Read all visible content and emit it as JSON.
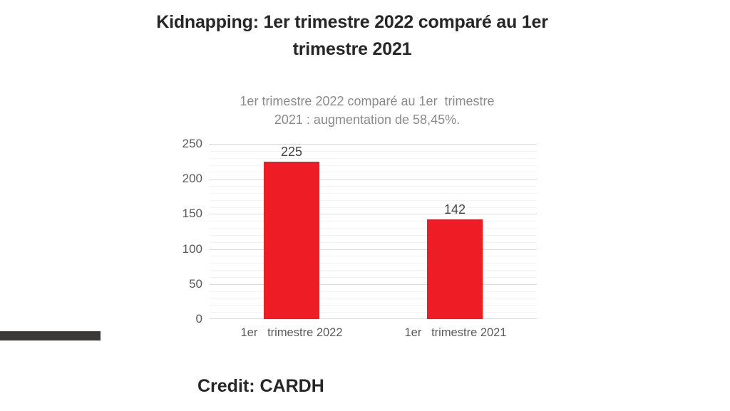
{
  "page": {
    "background": "#ffffff",
    "title": {
      "line1": "Kidnapping: 1er trimestre 2022 comparé au 1er",
      "line2": "trimestre 2021"
    },
    "credit": "Credit: CARDH"
  },
  "chart_data": {
    "type": "bar",
    "title": {
      "line1": "1er trimestre 2022 comparé au 1er  trimestre",
      "line2": "2021 : augmentation de 58,45%."
    },
    "categories": [
      "1er   trimestre 2022",
      "1er   trimestre 2021"
    ],
    "values": [
      225,
      142
    ],
    "data_labels": [
      "225",
      "142"
    ],
    "xlabel": "",
    "ylabel": "",
    "ylim": [
      0,
      250
    ],
    "y_ticks": [
      0,
      50,
      100,
      150,
      200,
      250
    ],
    "y_minor_step": 10,
    "grid": "horizontal major and minor gridlines",
    "legend": "none",
    "bar_color": "#EE1C25"
  },
  "colors": {
    "bar_red": "#EE1C25",
    "title_text": "#262626",
    "chart_subtitle_text": "#8A8A8A",
    "axis_text": "#595959",
    "major_gridline": "#D9D9D9",
    "minor_gridline": "#F3F3F3",
    "accent_bar": "#3B3838"
  }
}
